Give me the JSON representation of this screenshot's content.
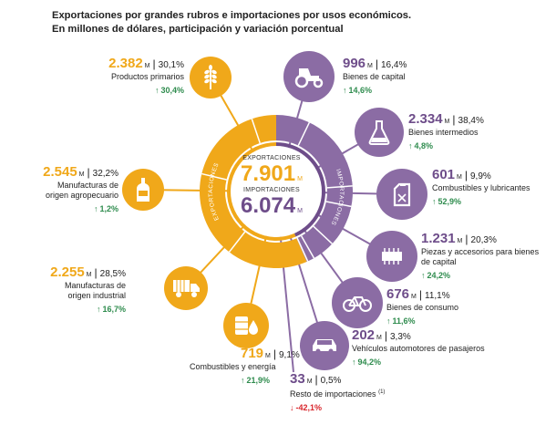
{
  "title_line1": "Exportaciones por grandes rubros e importaciones por usos económicos.",
  "title_line2": "En millones de dólares, participación y variación porcentual",
  "center": {
    "exp_label": "EXPORTACIONES",
    "exp_value": "7.901",
    "imp_label": "IMPORTACIONES",
    "imp_value": "6.074",
    "unit": "M",
    "ring_exp_label": "EXPORTACIONES",
    "ring_imp_label": "IMPORTACIONES"
  },
  "colors": {
    "exports": "#f0a81a",
    "imports": "#6e4d8a",
    "imports_light": "#8b6ca4",
    "up": "#2f8c4e",
    "down": "#d8262c"
  },
  "exports": [
    {
      "value": "2.382",
      "share": "30,1%",
      "label": "Productos primarios",
      "change": "30,4%",
      "dir": "up",
      "icon": "wheat-icon"
    },
    {
      "value": "2.545",
      "share": "32,2%",
      "label": "Manufacturas de origen agropecuario",
      "change": "1,2%",
      "dir": "up",
      "icon": "bottle-icon"
    },
    {
      "value": "2.255",
      "share": "28,5%",
      "label": "Manufacturas de origen industrial",
      "change": "16,7%",
      "dir": "up",
      "icon": "truck-icon"
    },
    {
      "value": "719",
      "share": "9,1%",
      "label": "Combustibles y energía",
      "change": "21,9%",
      "dir": "up",
      "icon": "barrel-drop-icon"
    }
  ],
  "imports": [
    {
      "value": "996",
      "share": "16,4%",
      "label": "Bienes de capital",
      "change": "14,6%",
      "dir": "up",
      "icon": "tractor-icon"
    },
    {
      "value": "2.334",
      "share": "38,4%",
      "label": "Bienes intermedios",
      "change": "4,8%",
      "dir": "up",
      "icon": "flask-icon"
    },
    {
      "value": "601",
      "share": "9,9%",
      "label": "Combustibles y lubricantes",
      "change": "52,9%",
      "dir": "up",
      "icon": "jerrycan-icon"
    },
    {
      "value": "1.231",
      "share": "20,3%",
      "label": "Piezas y accesorios para bienes de capital",
      "change": "24,2%",
      "dir": "up",
      "icon": "chip-icon"
    },
    {
      "value": "676",
      "share": "11,1%",
      "label": "Bienes de consumo",
      "change": "11,6%",
      "dir": "up",
      "icon": "bicycle-icon"
    },
    {
      "value": "202",
      "share": "3,3%",
      "label": "Vehículos automotores de pasajeros",
      "change": "94,2%",
      "dir": "up",
      "icon": "car-icon"
    },
    {
      "value": "33",
      "share": "0,5%",
      "label": "Resto de importaciones",
      "footnote": "(1)",
      "change": "-42,1%",
      "dir": "down",
      "icon": "none"
    }
  ],
  "unit": "M",
  "chart_data": {
    "type": "pie",
    "title": "Exportaciones por grandes rubros e importaciones por usos económicos.",
    "subtitle": "En millones de dólares, participación y variación porcentual",
    "series": [
      {
        "name": "EXPORTACIONES",
        "total": 7901,
        "categories": [
          "Productos primarios",
          "Manufacturas de origen agropecuario",
          "Manufacturas de origen industrial",
          "Combustibles y energía"
        ],
        "values": [
          2382,
          2545,
          2255,
          719
        ],
        "share_pct": [
          30.1,
          32.2,
          28.5,
          9.1
        ],
        "change_pct": [
          30.4,
          1.2,
          16.7,
          21.9
        ]
      },
      {
        "name": "IMPORTACIONES",
        "total": 6074,
        "categories": [
          "Bienes de capital",
          "Bienes intermedios",
          "Combustibles y lubricantes",
          "Piezas y accesorios para bienes de capital",
          "Bienes de consumo",
          "Vehículos automotores de pasajeros",
          "Resto de importaciones"
        ],
        "values": [
          996,
          2334,
          601,
          1231,
          676,
          202,
          33
        ],
        "share_pct": [
          16.4,
          38.4,
          9.9,
          20.3,
          11.1,
          3.3,
          0.5
        ],
        "change_pct": [
          14.6,
          4.8,
          52.9,
          24.2,
          11.6,
          94.2,
          -42.1
        ]
      }
    ]
  }
}
